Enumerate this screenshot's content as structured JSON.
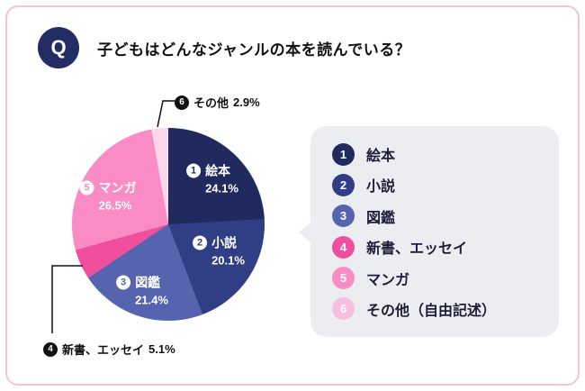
{
  "meta": {
    "colors": {
      "card_border": "#f6c2d3",
      "q_badge": "#232c63",
      "legend_bg": "#ebedf1",
      "legend_text": "#1c1d38",
      "line": "#111111"
    }
  },
  "header": {
    "q_label": "Q",
    "title": "子どもはどんなジャンルの本を読んでいる？"
  },
  "chart_data": {
    "type": "pie",
    "title": "子どもはどんなジャンルの本を読んでいる？",
    "unit": "%",
    "start_angle_deg": 0,
    "direction": "clockwise",
    "segments": [
      {
        "num": "1",
        "label": "絵本",
        "value": 24.1,
        "color": "#212a5f"
      },
      {
        "num": "2",
        "label": "小説",
        "value": 20.1,
        "color": "#303e86"
      },
      {
        "num": "3",
        "label": "図鑑",
        "value": 21.4,
        "color": "#5663af"
      },
      {
        "num": "4",
        "label": "新書、エッセイ",
        "value": 5.1,
        "color": "#ef4f9d"
      },
      {
        "num": "5",
        "label": "マンガ",
        "value": 26.5,
        "color": "#f98cc4"
      },
      {
        "num": "6",
        "label": "その他",
        "value": 2.9,
        "color": "#fad7ec"
      }
    ],
    "inner_labels": [
      {
        "num": "1",
        "label": "絵本",
        "value": "24.1%"
      },
      {
        "num": "2",
        "label": "小説",
        "value": "20.1%"
      },
      {
        "num": "3",
        "label": "図鑑",
        "value": "21.4%"
      },
      {
        "num": "5",
        "label": "マンガ",
        "value": "26.5%"
      }
    ]
  },
  "callouts": {
    "six": {
      "num": "6",
      "label": "その他",
      "value": "2.9%"
    },
    "four": {
      "num": "4",
      "label": "新書、エッセイ",
      "value": "5.1%"
    }
  },
  "legend": {
    "items": [
      {
        "num": "1",
        "label": "絵本",
        "color": "#212a5f"
      },
      {
        "num": "2",
        "label": "小説",
        "color": "#303e86"
      },
      {
        "num": "3",
        "label": "図鑑",
        "color": "#5663af"
      },
      {
        "num": "4",
        "label": "新書、エッセイ",
        "color": "#ef4f9d"
      },
      {
        "num": "5",
        "label": "マンガ",
        "color": "#f98cc4"
      },
      {
        "num": "6",
        "label": "その他（自由記述）",
        "color": "#f6bfdf"
      }
    ]
  }
}
